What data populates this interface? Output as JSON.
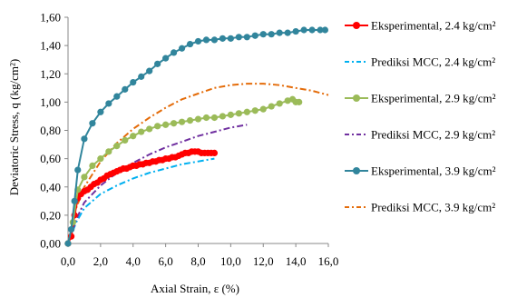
{
  "chart_data": {
    "type": "line",
    "xlabel": "Axial Strain, ε (%)",
    "ylabel": "Deviatoric Stress, q (kg/cm²)",
    "xlim": [
      0,
      16
    ],
    "ylim": [
      0,
      1.6
    ],
    "x_ticks": [
      "0,0",
      "2,0",
      "4,0",
      "6,0",
      "8,0",
      "10,0",
      "12,0",
      "14,0",
      "16,0"
    ],
    "y_ticks": [
      "0,00",
      "0,20",
      "0,40",
      "0,60",
      "0,80",
      "1,00",
      "1,20",
      "1,40",
      "1,60"
    ],
    "legend_position": "right",
    "grid": false,
    "series": [
      {
        "name": "Eksperimental, 2.4 kg/cm²",
        "style": "solid-markers",
        "color": "#ff0000",
        "points": [
          [
            0,
            0
          ],
          [
            0.2,
            0.05
          ],
          [
            0.4,
            0.2
          ],
          [
            0.6,
            0.32
          ],
          [
            0.8,
            0.35
          ],
          [
            1.0,
            0.37
          ],
          [
            1.2,
            0.38
          ],
          [
            1.4,
            0.4
          ],
          [
            1.6,
            0.42
          ],
          [
            1.8,
            0.43
          ],
          [
            2.0,
            0.45
          ],
          [
            2.2,
            0.46
          ],
          [
            2.4,
            0.48
          ],
          [
            2.6,
            0.49
          ],
          [
            2.8,
            0.5
          ],
          [
            3.0,
            0.51
          ],
          [
            3.2,
            0.52
          ],
          [
            3.4,
            0.53
          ],
          [
            3.6,
            0.53
          ],
          [
            3.8,
            0.54
          ],
          [
            4.0,
            0.55
          ],
          [
            4.2,
            0.55
          ],
          [
            4.4,
            0.56
          ],
          [
            4.6,
            0.56
          ],
          [
            4.8,
            0.57
          ],
          [
            5.0,
            0.57
          ],
          [
            5.2,
            0.58
          ],
          [
            5.4,
            0.58
          ],
          [
            5.6,
            0.59
          ],
          [
            5.8,
            0.59
          ],
          [
            6.0,
            0.6
          ],
          [
            6.2,
            0.6
          ],
          [
            6.4,
            0.61
          ],
          [
            6.6,
            0.61
          ],
          [
            6.8,
            0.62
          ],
          [
            7.0,
            0.63
          ],
          [
            7.2,
            0.64
          ],
          [
            7.4,
            0.64
          ],
          [
            7.6,
            0.65
          ],
          [
            7.8,
            0.65
          ],
          [
            8.0,
            0.65
          ],
          [
            8.2,
            0.64
          ],
          [
            8.4,
            0.64
          ],
          [
            8.6,
            0.64
          ],
          [
            8.8,
            0.64
          ],
          [
            9.0,
            0.64
          ]
        ]
      },
      {
        "name": "Prediksi MCC, 2.4 kg/cm²",
        "style": "dash-dot",
        "color": "#00b0f0",
        "points": [
          [
            0,
            0
          ],
          [
            0.5,
            0.15
          ],
          [
            1.0,
            0.25
          ],
          [
            2.0,
            0.35
          ],
          [
            3.0,
            0.41
          ],
          [
            4.0,
            0.46
          ],
          [
            5.0,
            0.5
          ],
          [
            6.0,
            0.53
          ],
          [
            7.0,
            0.56
          ],
          [
            8.0,
            0.58
          ],
          [
            9.0,
            0.6
          ]
        ]
      },
      {
        "name": "Eksperimental, 2.9 kg/cm²",
        "style": "solid-markers",
        "color": "#9bbb59",
        "points": [
          [
            0,
            0
          ],
          [
            0.3,
            0.15
          ],
          [
            0.6,
            0.38
          ],
          [
            1.0,
            0.47
          ],
          [
            1.5,
            0.55
          ],
          [
            2.0,
            0.6
          ],
          [
            2.5,
            0.65
          ],
          [
            3.0,
            0.69
          ],
          [
            3.5,
            0.73
          ],
          [
            4.0,
            0.76
          ],
          [
            4.5,
            0.79
          ],
          [
            5.0,
            0.81
          ],
          [
            5.5,
            0.83
          ],
          [
            6.0,
            0.84
          ],
          [
            6.5,
            0.85
          ],
          [
            7.0,
            0.86
          ],
          [
            7.5,
            0.87
          ],
          [
            8.0,
            0.88
          ],
          [
            8.5,
            0.89
          ],
          [
            9.0,
            0.89
          ],
          [
            9.5,
            0.9
          ],
          [
            10.0,
            0.91
          ],
          [
            10.5,
            0.92
          ],
          [
            11.0,
            0.93
          ],
          [
            11.5,
            0.94
          ],
          [
            12.0,
            0.95
          ],
          [
            12.5,
            0.97
          ],
          [
            13.0,
            0.99
          ],
          [
            13.5,
            1.01
          ],
          [
            13.8,
            1.02
          ],
          [
            14.0,
            1.0
          ],
          [
            14.2,
            1.0
          ]
        ]
      },
      {
        "name": "Prediksi MCC, 2.9 kg/cm²",
        "style": "dash-dot",
        "color": "#7030a0",
        "points": [
          [
            0,
            0
          ],
          [
            0.5,
            0.17
          ],
          [
            1.0,
            0.29
          ],
          [
            2.0,
            0.41
          ],
          [
            3.0,
            0.5
          ],
          [
            4.0,
            0.57
          ],
          [
            5.0,
            0.63
          ],
          [
            6.0,
            0.68
          ],
          [
            7.0,
            0.72
          ],
          [
            8.0,
            0.76
          ],
          [
            9.0,
            0.79
          ],
          [
            10.0,
            0.82
          ],
          [
            11.0,
            0.84
          ]
        ]
      },
      {
        "name": "Eksperimental, 3.9 kg/cm²",
        "style": "solid-markers",
        "color": "#31859c",
        "points": [
          [
            0,
            0
          ],
          [
            0.2,
            0.1
          ],
          [
            0.4,
            0.3
          ],
          [
            0.6,
            0.52
          ],
          [
            1.0,
            0.74
          ],
          [
            1.5,
            0.85
          ],
          [
            2.0,
            0.93
          ],
          [
            2.5,
            0.99
          ],
          [
            3.0,
            1.04
          ],
          [
            3.5,
            1.09
          ],
          [
            4.0,
            1.14
          ],
          [
            4.5,
            1.18
          ],
          [
            5.0,
            1.22
          ],
          [
            5.5,
            1.27
          ],
          [
            6.0,
            1.31
          ],
          [
            6.5,
            1.35
          ],
          [
            7.0,
            1.38
          ],
          [
            7.5,
            1.41
          ],
          [
            8.0,
            1.43
          ],
          [
            8.5,
            1.44
          ],
          [
            9.0,
            1.44
          ],
          [
            9.5,
            1.45
          ],
          [
            10.0,
            1.45
          ],
          [
            10.5,
            1.46
          ],
          [
            11.0,
            1.46
          ],
          [
            11.5,
            1.47
          ],
          [
            12.0,
            1.48
          ],
          [
            12.5,
            1.48
          ],
          [
            13.0,
            1.49
          ],
          [
            13.5,
            1.49
          ],
          [
            14.0,
            1.5
          ],
          [
            14.5,
            1.51
          ],
          [
            15.0,
            1.51
          ],
          [
            15.5,
            1.51
          ],
          [
            15.8,
            1.51
          ]
        ]
      },
      {
        "name": "Prediksi MCC, 3.9 kg/cm²",
        "style": "dash-dot",
        "color": "#e46c0a",
        "points": [
          [
            0,
            0
          ],
          [
            0.5,
            0.25
          ],
          [
            1.0,
            0.4
          ],
          [
            2.0,
            0.58
          ],
          [
            3.0,
            0.71
          ],
          [
            4.0,
            0.81
          ],
          [
            5.0,
            0.89
          ],
          [
            6.0,
            0.96
          ],
          [
            7.0,
            1.02
          ],
          [
            8.0,
            1.06
          ],
          [
            9.0,
            1.1
          ],
          [
            10.0,
            1.12
          ],
          [
            11.0,
            1.13
          ],
          [
            12.0,
            1.13
          ],
          [
            13.0,
            1.12
          ],
          [
            14.0,
            1.1
          ],
          [
            15.0,
            1.08
          ],
          [
            16.0,
            1.05
          ]
        ]
      }
    ]
  }
}
